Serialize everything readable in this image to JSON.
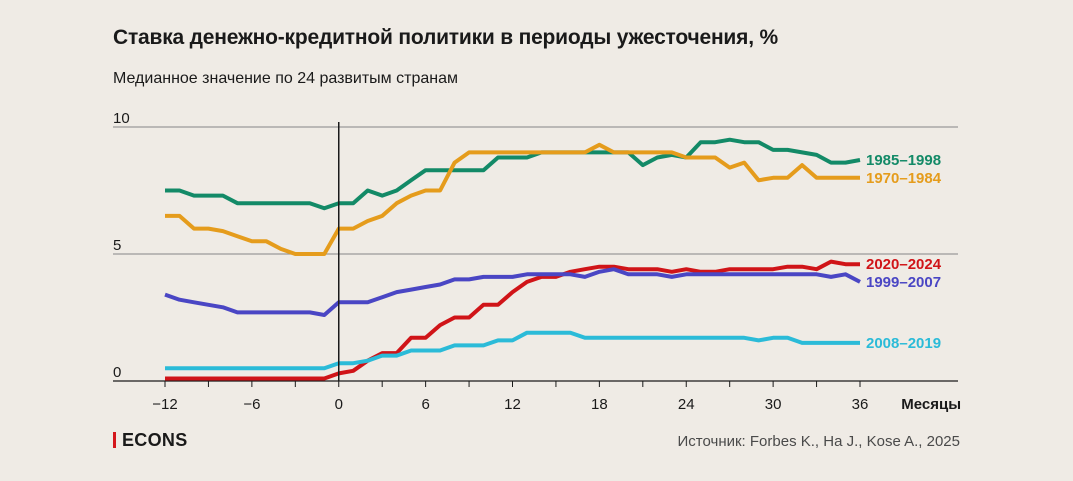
{
  "title": "Ставка денежно-кредитной политики в периоды ужесточения, %",
  "subtitle": "Медианное значение по 24 развитым странам",
  "brand": "ECONS",
  "source": "Источник: Forbes K., Ha J., Kose A., 2025",
  "chart_data": {
    "type": "line",
    "xlabel": "Месяцы",
    "ylabel": "",
    "xlim": [
      -13,
      36
    ],
    "ylim": [
      0,
      10
    ],
    "x_ticks": [
      "−12",
      "−6",
      "0",
      "6",
      "12",
      "18",
      "24",
      "30",
      "36"
    ],
    "x_tick_values": [
      -12,
      -6,
      0,
      6,
      12,
      18,
      24,
      30,
      36
    ],
    "y_ticks": [
      "0",
      "5",
      "10"
    ],
    "y_tick_values": [
      0,
      5,
      10
    ],
    "grid": "horizontal",
    "vline_x": 0,
    "x": [
      -12,
      -11,
      -10,
      -9,
      -8,
      -7,
      -6,
      -5,
      -4,
      -3,
      -2,
      -1,
      0,
      1,
      2,
      3,
      4,
      5,
      6,
      7,
      8,
      9,
      10,
      11,
      12,
      13,
      14,
      15,
      16,
      17,
      18,
      19,
      20,
      21,
      22,
      23,
      24,
      25,
      26,
      27,
      28,
      29,
      30,
      31,
      32,
      33,
      34,
      35,
      36
    ],
    "series": [
      {
        "name": "1985–1998",
        "color": "#138a67",
        "values": [
          7.5,
          7.5,
          7.3,
          7.3,
          7.3,
          7.0,
          7.0,
          7.0,
          7.0,
          7.0,
          7.0,
          6.8,
          7.0,
          7.0,
          7.5,
          7.3,
          7.5,
          7.9,
          8.3,
          8.3,
          8.3,
          8.3,
          8.3,
          8.8,
          8.8,
          8.8,
          9.0,
          9.0,
          9.0,
          9.0,
          9.0,
          9.0,
          9.0,
          8.5,
          8.8,
          8.9,
          8.8,
          9.4,
          9.4,
          9.5,
          9.4,
          9.4,
          9.1,
          9.1,
          9.0,
          8.9,
          8.6,
          8.6,
          8.7
        ]
      },
      {
        "name": "1970–1984",
        "color": "#e59c1c",
        "values": [
          6.5,
          6.5,
          6.0,
          6.0,
          5.9,
          5.7,
          5.5,
          5.5,
          5.2,
          5.0,
          5.0,
          5.0,
          6.0,
          6.0,
          6.3,
          6.5,
          7.0,
          7.3,
          7.5,
          7.5,
          8.6,
          9.0,
          9.0,
          9.0,
          9.0,
          9.0,
          9.0,
          9.0,
          9.0,
          9.0,
          9.3,
          9.0,
          9.0,
          9.0,
          9.0,
          9.0,
          8.8,
          8.8,
          8.8,
          8.4,
          8.6,
          7.9,
          8.0,
          8.0,
          8.5,
          8.0,
          8.0,
          8.0,
          8.0
        ]
      },
      {
        "name": "2020–2024",
        "color": "#d01418",
        "values": [
          0.1,
          0.1,
          0.1,
          0.1,
          0.1,
          0.1,
          0.1,
          0.1,
          0.1,
          0.1,
          0.1,
          0.1,
          0.3,
          0.4,
          0.8,
          1.1,
          1.1,
          1.7,
          1.7,
          2.2,
          2.5,
          2.5,
          3.0,
          3.0,
          3.5,
          3.9,
          4.1,
          4.1,
          4.3,
          4.4,
          4.5,
          4.5,
          4.4,
          4.4,
          4.4,
          4.3,
          4.4,
          4.3,
          4.3,
          4.4,
          4.4,
          4.4,
          4.4,
          4.5,
          4.5,
          4.4,
          4.7,
          4.6,
          4.6
        ]
      },
      {
        "name": "1999–2007",
        "color": "#4a46c4",
        "values": [
          3.4,
          3.2,
          3.1,
          3.0,
          2.9,
          2.7,
          2.7,
          2.7,
          2.7,
          2.7,
          2.7,
          2.6,
          3.1,
          3.1,
          3.1,
          3.3,
          3.5,
          3.6,
          3.7,
          3.8,
          4.0,
          4.0,
          4.1,
          4.1,
          4.1,
          4.2,
          4.2,
          4.2,
          4.2,
          4.1,
          4.3,
          4.4,
          4.2,
          4.2,
          4.2,
          4.1,
          4.2,
          4.2,
          4.2,
          4.2,
          4.2,
          4.2,
          4.2,
          4.2,
          4.2,
          4.2,
          4.1,
          4.2,
          3.9
        ]
      },
      {
        "name": "2008–2019",
        "color": "#2bbbd8",
        "values": [
          0.5,
          0.5,
          0.5,
          0.5,
          0.5,
          0.5,
          0.5,
          0.5,
          0.5,
          0.5,
          0.5,
          0.5,
          0.7,
          0.7,
          0.8,
          1.0,
          1.0,
          1.2,
          1.2,
          1.2,
          1.4,
          1.4,
          1.4,
          1.6,
          1.6,
          1.9,
          1.9,
          1.9,
          1.9,
          1.7,
          1.7,
          1.7,
          1.7,
          1.7,
          1.7,
          1.7,
          1.7,
          1.7,
          1.7,
          1.7,
          1.7,
          1.6,
          1.7,
          1.7,
          1.5,
          1.5,
          1.5,
          1.5,
          1.5
        ]
      }
    ]
  }
}
